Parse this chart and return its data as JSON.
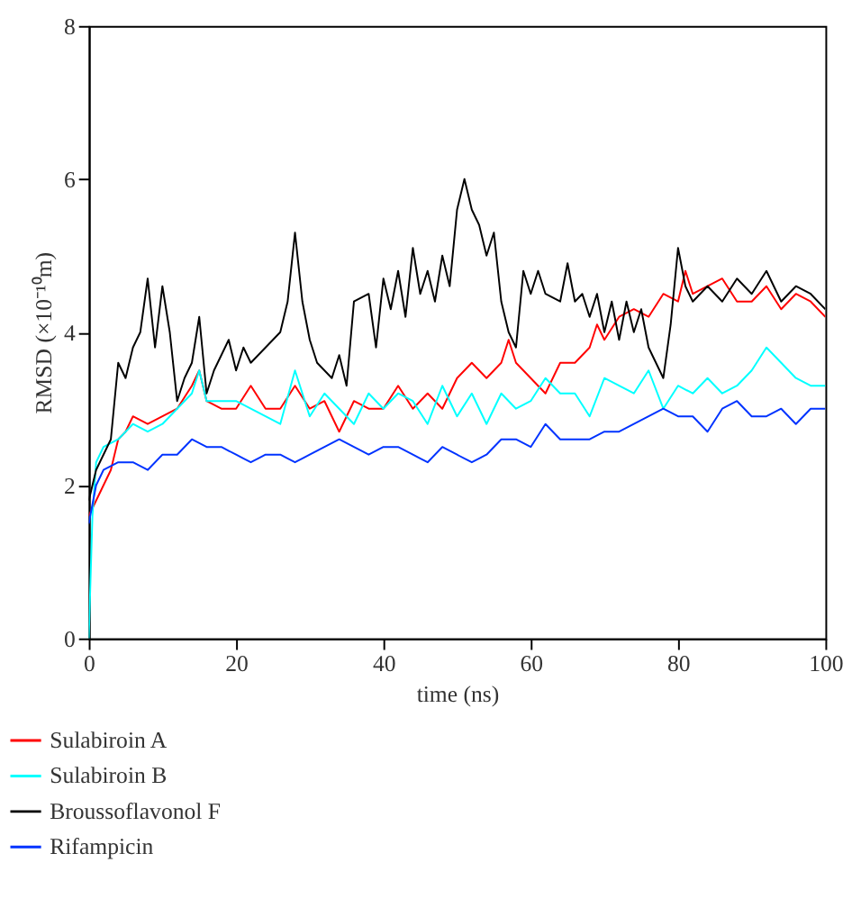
{
  "chart_data": {
    "type": "line",
    "xlabel": "time (ns)",
    "ylabel": "RMSD (×10⁻¹⁰m)",
    "xlim": [
      0,
      100
    ],
    "ylim": [
      0,
      8
    ],
    "xticks": [
      0,
      20,
      40,
      60,
      80,
      100
    ],
    "yticks": [
      0,
      2,
      4,
      6,
      8
    ],
    "grid": false,
    "legend": "bottom left",
    "marker": "none",
    "line_style": "solid",
    "series": [
      {
        "name": "Sulabiroin A",
        "color": "#ff0000",
        "x": [
          0,
          1,
          2,
          3,
          4,
          5,
          6,
          8,
          10,
          12,
          14,
          15,
          16,
          18,
          20,
          22,
          24,
          26,
          28,
          30,
          32,
          34,
          36,
          38,
          40,
          42,
          44,
          46,
          48,
          50,
          52,
          54,
          56,
          57,
          58,
          60,
          62,
          64,
          66,
          68,
          69,
          70,
          72,
          74,
          76,
          78,
          80,
          81,
          82,
          84,
          86,
          88,
          90,
          92,
          94,
          96,
          98,
          100
        ],
        "values": [
          1.6,
          1.8,
          2.0,
          2.2,
          2.6,
          2.7,
          2.9,
          2.8,
          2.9,
          3.0,
          3.3,
          3.5,
          3.1,
          3.0,
          3.0,
          3.3,
          3.0,
          3.0,
          3.3,
          3.0,
          3.1,
          2.7,
          3.1,
          3.0,
          3.0,
          3.3,
          3.0,
          3.2,
          3.0,
          3.4,
          3.6,
          3.4,
          3.6,
          3.9,
          3.6,
          3.4,
          3.2,
          3.6,
          3.6,
          3.8,
          4.1,
          3.9,
          4.2,
          4.3,
          4.2,
          4.5,
          4.4,
          4.8,
          4.5,
          4.6,
          4.7,
          4.4,
          4.4,
          4.6,
          4.3,
          4.5,
          4.4,
          4.2
        ]
      },
      {
        "name": "Sulabiroin B",
        "color": "#00ffff",
        "x": [
          0,
          0.5,
          1,
          2,
          4,
          6,
          8,
          10,
          12,
          14,
          15,
          16,
          18,
          20,
          22,
          24,
          26,
          28,
          30,
          32,
          34,
          36,
          38,
          40,
          42,
          44,
          46,
          48,
          50,
          52,
          54,
          56,
          58,
          60,
          62,
          64,
          66,
          68,
          70,
          72,
          74,
          76,
          78,
          80,
          82,
          84,
          86,
          88,
          90,
          92,
          94,
          96,
          98,
          100
        ],
        "values": [
          0,
          1.6,
          2.3,
          2.5,
          2.6,
          2.8,
          2.7,
          2.8,
          3.0,
          3.2,
          3.5,
          3.1,
          3.1,
          3.1,
          3.0,
          2.9,
          2.8,
          3.5,
          2.9,
          3.2,
          3.0,
          2.8,
          3.2,
          3.0,
          3.2,
          3.1,
          2.8,
          3.3,
          2.9,
          3.2,
          2.8,
          3.2,
          3.0,
          3.1,
          3.4,
          3.2,
          3.2,
          2.9,
          3.4,
          3.3,
          3.2,
          3.5,
          3.0,
          3.3,
          3.2,
          3.4,
          3.2,
          3.3,
          3.5,
          3.8,
          3.6,
          3.4,
          3.3,
          3.3
        ]
      },
      {
        "name": "Broussoflavonol F",
        "color": "#000000",
        "x": [
          0,
          1,
          2,
          3,
          4,
          5,
          6,
          7,
          8,
          9,
          10,
          11,
          12,
          13,
          14,
          15,
          16,
          17,
          18,
          19,
          20,
          21,
          22,
          24,
          26,
          27,
          28,
          29,
          30,
          31,
          32,
          33,
          34,
          35,
          36,
          38,
          39,
          40,
          41,
          42,
          43,
          44,
          45,
          46,
          47,
          48,
          49,
          50,
          51,
          52,
          53,
          54,
          55,
          56,
          57,
          58,
          59,
          60,
          61,
          62,
          64,
          65,
          66,
          67,
          68,
          69,
          70,
          71,
          72,
          73,
          74,
          75,
          76,
          77,
          78,
          79,
          80,
          81,
          82,
          84,
          86,
          88,
          90,
          92,
          94,
          96,
          98,
          100
        ],
        "values": [
          1.8,
          2.2,
          2.4,
          2.6,
          3.6,
          3.4,
          3.8,
          4.0,
          4.7,
          3.8,
          4.6,
          4.0,
          3.1,
          3.4,
          3.6,
          4.2,
          3.2,
          3.5,
          3.7,
          3.9,
          3.5,
          3.8,
          3.6,
          3.8,
          4.0,
          4.4,
          5.3,
          4.4,
          3.9,
          3.6,
          3.5,
          3.4,
          3.7,
          3.3,
          4.4,
          4.5,
          3.8,
          4.7,
          4.3,
          4.8,
          4.2,
          5.1,
          4.5,
          4.8,
          4.4,
          5.0,
          4.6,
          5.6,
          6.0,
          5.6,
          5.4,
          5.0,
          5.3,
          4.4,
          4.0,
          3.8,
          4.8,
          4.5,
          4.8,
          4.5,
          4.4,
          4.9,
          4.4,
          4.5,
          4.2,
          4.5,
          4.0,
          4.4,
          3.9,
          4.4,
          4.0,
          4.3,
          3.8,
          3.6,
          3.4,
          4.1,
          5.1,
          4.6,
          4.4,
          4.6,
          4.4,
          4.7,
          4.5,
          4.8,
          4.4,
          4.6,
          4.5,
          4.3
        ]
      },
      {
        "name": "Rifampicin",
        "color": "#0033ff",
        "x": [
          0,
          1,
          2,
          4,
          6,
          8,
          10,
          12,
          14,
          16,
          18,
          20,
          22,
          24,
          26,
          28,
          30,
          32,
          34,
          36,
          38,
          40,
          42,
          44,
          46,
          48,
          50,
          52,
          54,
          56,
          58,
          60,
          62,
          64,
          66,
          68,
          70,
          72,
          74,
          76,
          78,
          80,
          82,
          84,
          86,
          88,
          90,
          92,
          94,
          96,
          98,
          100
        ],
        "values": [
          1.5,
          2.0,
          2.2,
          2.3,
          2.3,
          2.2,
          2.4,
          2.4,
          2.6,
          2.5,
          2.5,
          2.4,
          2.3,
          2.4,
          2.4,
          2.3,
          2.4,
          2.5,
          2.6,
          2.5,
          2.4,
          2.5,
          2.5,
          2.4,
          2.3,
          2.5,
          2.4,
          2.3,
          2.4,
          2.6,
          2.6,
          2.5,
          2.8,
          2.6,
          2.6,
          2.6,
          2.7,
          2.7,
          2.8,
          2.9,
          3.0,
          2.9,
          2.9,
          2.7,
          3.0,
          3.1,
          2.9,
          2.9,
          3.0,
          2.8,
          3.0,
          3.0
        ]
      }
    ]
  }
}
